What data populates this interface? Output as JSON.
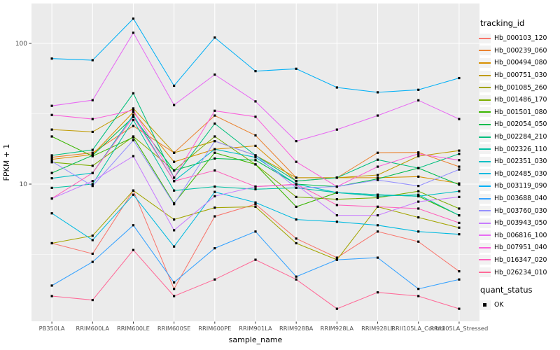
{
  "chart_data": {
    "type": "line",
    "title": "",
    "xlabel": "sample_name",
    "ylabel": "FPKM + 1",
    "y_scale": "log10",
    "y_ticks": [
      10,
      100
    ],
    "y_tick_labels": [
      "10",
      "100"
    ],
    "y_minor_breaks": [
      3.162,
      31.623
    ],
    "ylim": [
      1.05,
      192
    ],
    "grid": "on",
    "legend_position": "right",
    "categories": [
      "PB350LA",
      "RRIM600LA",
      "RRIM600LE",
      "RRIM600SE",
      "RRIM600PE",
      "RRIM901LA",
      "RRIM928BA",
      "RRIM928LA",
      "RRIM928LE",
      "RRII105LA_Control",
      "RRII105LA_Stressed"
    ],
    "series": [
      {
        "name": "Hb_000103_120",
        "color": "#F8766D",
        "values": [
          3.8,
          3.2,
          9.0,
          1.8,
          5.9,
          7.2,
          4.1,
          3.0,
          4.6,
          3.9,
          2.4
        ]
      },
      {
        "name": "Hb_000239_060",
        "color": "#EA8331",
        "values": [
          15.5,
          16.7,
          25.9,
          16.7,
          30.7,
          22.2,
          11.1,
          11.1,
          16.7,
          16.8,
          13.3
        ]
      },
      {
        "name": "Hb_000494_080",
        "color": "#D89000",
        "values": [
          15.0,
          16.2,
          32.5,
          14.4,
          17.7,
          18.7,
          10.5,
          11.1,
          11.1,
          11.3,
          10.1
        ]
      },
      {
        "name": "Hb_000751_030",
        "color": "#C09B00",
        "values": [
          24.4,
          23.5,
          34.5,
          16.7,
          20.2,
          16.0,
          11.1,
          11.1,
          11.6,
          15.8,
          17.3
        ]
      },
      {
        "name": "Hb_001085_260",
        "color": "#A3A500",
        "values": [
          3.8,
          4.3,
          9.0,
          5.6,
          6.8,
          6.9,
          3.8,
          2.9,
          6.9,
          5.8,
          4.9
        ]
      },
      {
        "name": "Hb_001486_170",
        "color": "#7CAE00",
        "values": [
          14.3,
          13.5,
          21.8,
          12.5,
          21.8,
          13.8,
          8.1,
          7.8,
          8.0,
          8.9,
          6.7
        ]
      },
      {
        "name": "Hb_001501_080",
        "color": "#39B600",
        "values": [
          21.8,
          15.8,
          21.5,
          7.3,
          16.7,
          13.8,
          6.9,
          8.7,
          8.4,
          8.2,
          6.0
        ]
      },
      {
        "name": "Hb_002054_050",
        "color": "#00BB4E",
        "values": [
          12.0,
          16.0,
          30.0,
          12.5,
          15.2,
          14.8,
          10.0,
          9.6,
          10.9,
          13.0,
          9.9
        ]
      },
      {
        "name": "Hb_002284_210",
        "color": "#00BF7D",
        "values": [
          16.0,
          17.5,
          44.2,
          11.1,
          26.9,
          16.0,
          10.5,
          11.1,
          14.9,
          13.0,
          16.4
        ]
      },
      {
        "name": "Hb_002326_110",
        "color": "#00C1A3",
        "values": [
          9.4,
          10.0,
          28.5,
          9.0,
          9.6,
          9.2,
          9.4,
          8.7,
          8.2,
          8.4,
          6.0
        ]
      },
      {
        "name": "Hb_002351_030",
        "color": "#00BFC4",
        "values": [
          11.0,
          12.0,
          31.0,
          10.5,
          17.7,
          15.5,
          10.0,
          8.7,
          8.4,
          8.2,
          8.9
        ]
      },
      {
        "name": "Hb_002485_030",
        "color": "#00BAE0",
        "values": [
          6.2,
          4.0,
          8.4,
          3.6,
          8.8,
          7.4,
          5.6,
          5.4,
          5.1,
          4.6,
          4.4
        ]
      },
      {
        "name": "Hb_003119_090",
        "color": "#00B0F6",
        "values": [
          78,
          76,
          150,
          50,
          110,
          63.5,
          66,
          48.6,
          44.9,
          46.8,
          56.7
        ]
      },
      {
        "name": "Hb_003688_040",
        "color": "#35A2FF",
        "values": [
          1.9,
          2.8,
          5.1,
          2.0,
          3.5,
          4.6,
          2.2,
          2.9,
          3.0,
          1.8,
          2.1
        ]
      },
      {
        "name": "Hb_003760_030",
        "color": "#9590FF",
        "values": [
          14.5,
          9.7,
          20.5,
          7.2,
          20.2,
          16.0,
          9.4,
          9.6,
          10.7,
          9.7,
          12.7
        ]
      },
      {
        "name": "Hb_003943_050",
        "color": "#C77CFF",
        "values": [
          7.9,
          10.5,
          15.8,
          4.7,
          8.2,
          9.6,
          9.9,
          6.0,
          6.0,
          7.5,
          8.1
        ]
      },
      {
        "name": "Hb_006816_100",
        "color": "#E76BF3",
        "values": [
          36,
          39.5,
          119,
          36.5,
          60,
          38.7,
          20.2,
          24.4,
          30.7,
          39.4,
          29
        ]
      },
      {
        "name": "Hb_007951_040",
        "color": "#FA62DB",
        "values": [
          31,
          29,
          33.5,
          11.1,
          33.2,
          30.1,
          14.4,
          9.6,
          13.3,
          16.4,
          14.8
        ]
      },
      {
        "name": "Hb_016347_020",
        "color": "#FF62BC",
        "values": [
          7.9,
          12.0,
          30.0,
          10.5,
          12.5,
          9.6,
          10.0,
          7.1,
          6.9,
          6.7,
          5.3
        ]
      },
      {
        "name": "Hb_026234_010",
        "color": "#FF6A98",
        "values": [
          1.6,
          1.5,
          3.4,
          1.6,
          2.1,
          2.9,
          2.1,
          1.3,
          1.7,
          1.6,
          1.3
        ]
      }
    ],
    "point_marker": "black-square"
  },
  "legend": {
    "series_title": "tracking_id",
    "quant_title": "quant_status",
    "quant_ok_label": "OK"
  },
  "colors": {
    "panel_bg": "#EBEBEB",
    "grid": "#FFFFFF",
    "tick_label": "#4D4D4D",
    "axis_title": "#000000",
    "legend_key_bg": "#F2F2F2",
    "marker": "#000000"
  }
}
